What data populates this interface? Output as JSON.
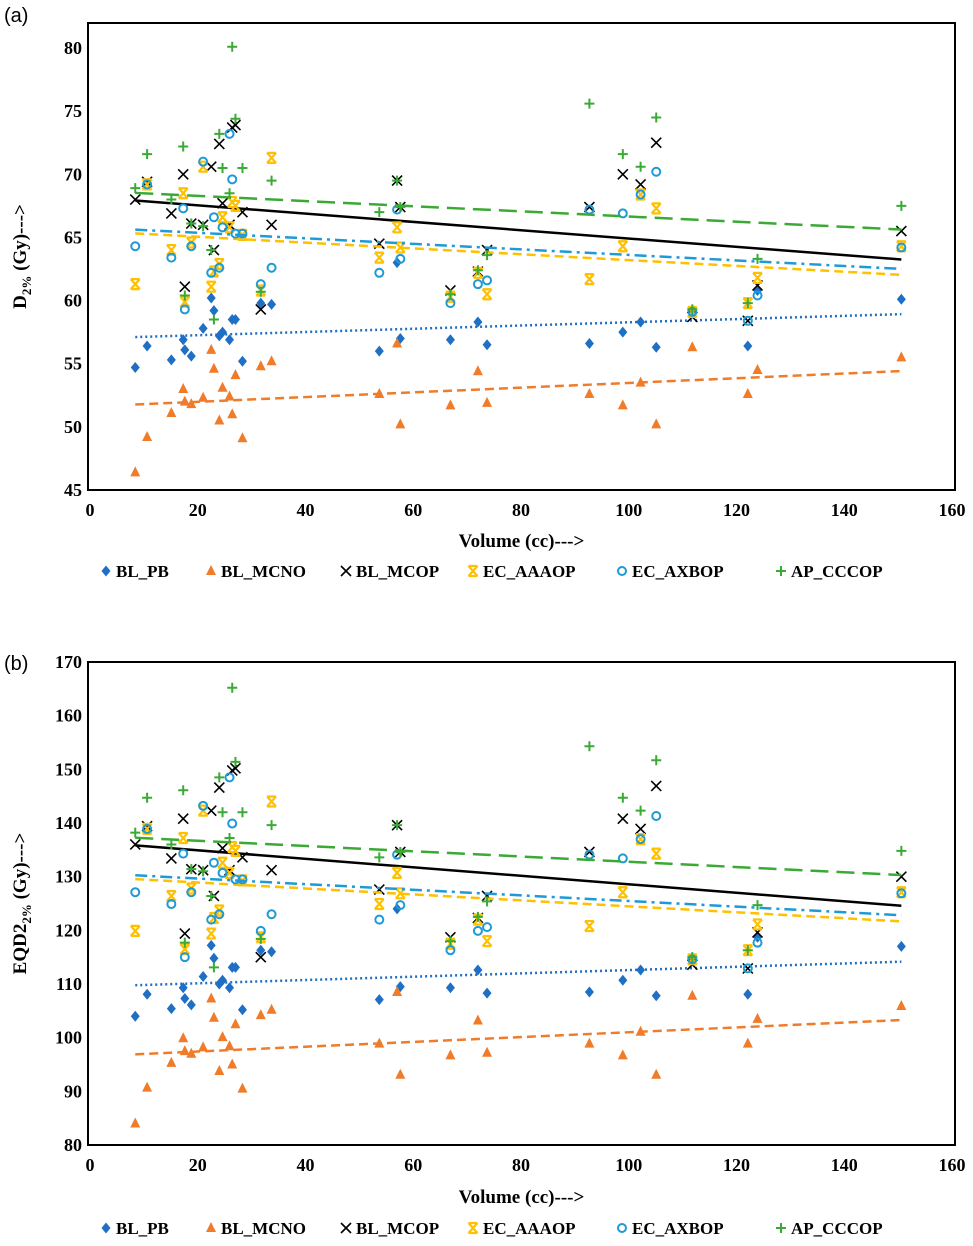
{
  "chart_data": [
    {
      "type": "scatter",
      "panel_label": "(a)",
      "xlabel": "Volume (cc)--->",
      "ylabel": {
        "main": "D",
        "sub": "2%",
        "rest": " (Gy)--->"
      },
      "xlim": [
        0,
        160
      ],
      "ylim": [
        45,
        80
      ],
      "xticks": [
        0,
        20,
        40,
        60,
        80,
        100,
        120,
        140,
        160
      ],
      "yticks": [
        45,
        50,
        55,
        60,
        65,
        70,
        75,
        80
      ],
      "grid": false,
      "legend": "bottom",
      "trendline": "linear",
      "x": [
        8.4,
        10.6,
        15.1,
        17.3,
        17.6,
        18.8,
        21.0,
        22.5,
        23.0,
        24.0,
        24.6,
        25.9,
        26.4,
        27.0,
        28.3,
        31.7,
        33.7,
        53.7,
        57.0,
        57.6,
        66.9,
        72.0,
        73.7,
        92.7,
        98.9,
        102.2,
        105.1,
        111.8,
        122.1,
        123.9,
        150.6
      ],
      "series": [
        {
          "name": "BL_PB",
          "marker": "diamond",
          "color": "#1f6fc5",
          "line": "dotted",
          "values": [
            54.7,
            56.4,
            55.3,
            56.9,
            56.1,
            55.6,
            57.8,
            60.2,
            59.2,
            57.2,
            57.5,
            56.9,
            58.5,
            58.5,
            55.2,
            59.8,
            59.7,
            56.0,
            63.0,
            57.0,
            56.9,
            58.3,
            56.5,
            56.6,
            57.5,
            58.3,
            56.3,
            59.1,
            56.4,
            60.8,
            60.1
          ]
        },
        {
          "name": "BL_MCNO",
          "marker": "triangle",
          "color": "#f07c2a",
          "line": "dashed",
          "values": [
            46.4,
            49.2,
            51.1,
            53.0,
            52.0,
            51.8,
            52.3,
            56.1,
            54.6,
            50.5,
            53.1,
            52.4,
            51.0,
            54.1,
            49.1,
            54.8,
            55.2,
            52.6,
            56.6,
            50.2,
            51.7,
            54.4,
            51.9,
            52.6,
            51.7,
            53.5,
            50.2,
            56.3,
            52.6,
            54.5,
            55.5
          ]
        },
        {
          "name": "BL_MCOP",
          "marker": "x",
          "color": "#000000",
          "line": "solid",
          "values": [
            68.0,
            69.4,
            66.9,
            70.0,
            61.1,
            66.1,
            66.0,
            70.6,
            64.0,
            72.4,
            67.7,
            66.0,
            73.7,
            73.9,
            67.0,
            59.3,
            66.0,
            64.5,
            69.5,
            67.4,
            60.8,
            62.3,
            64.0,
            67.4,
            70.0,
            69.2,
            72.5,
            58.7,
            58.4,
            61.2,
            65.5
          ]
        },
        {
          "name": "EC_AAAOP",
          "marker": "barred-x",
          "color": "#ffc000",
          "line": "dashed",
          "values": [
            61.3,
            69.2,
            64.0,
            68.5,
            59.9,
            64.6,
            70.6,
            61.1,
            62.3,
            62.9,
            66.6,
            65.8,
            67.8,
            67.5,
            65.2,
            60.8,
            71.3,
            63.4,
            65.8,
            64.2,
            60.3,
            62.2,
            60.5,
            61.7,
            64.3,
            68.4,
            67.3,
            59.1,
            59.8,
            61.8,
            64.3
          ]
        },
        {
          "name": "EC_AXBOP",
          "marker": "circle",
          "color": "#1e9ad6",
          "line": "dashdot",
          "values": [
            64.3,
            69.2,
            63.4,
            67.3,
            59.3,
            64.3,
            71.0,
            62.2,
            66.6,
            62.6,
            65.8,
            73.2,
            69.6,
            65.3,
            65.3,
            61.3,
            62.6,
            62.2,
            67.2,
            63.3,
            59.8,
            61.3,
            61.6,
            67.2,
            66.9,
            68.4,
            70.2,
            59.1,
            58.4,
            60.4,
            64.2
          ]
        },
        {
          "name": "AP_CCCOP",
          "marker": "plus",
          "color": "#3aaa35",
          "line": "longdash",
          "values": [
            68.9,
            71.6,
            68.0,
            72.2,
            60.4,
            66.1,
            65.9,
            64.0,
            58.5,
            73.2,
            70.5,
            68.5,
            80.1,
            74.4,
            70.5,
            60.7,
            69.5,
            67.0,
            69.5,
            67.4,
            60.5,
            62.4,
            63.6,
            75.6,
            71.6,
            70.6,
            74.5,
            59.3,
            59.8,
            63.3,
            67.5
          ]
        }
      ]
    },
    {
      "type": "scatter",
      "panel_label": "(b)",
      "xlabel": "Volume (cc)--->",
      "ylabel": {
        "main": "EQD2",
        "sub": "2%",
        "rest": " (Gy)--->"
      },
      "xlim": [
        0,
        160
      ],
      "ylim": [
        80,
        170
      ],
      "xticks": [
        0,
        20,
        40,
        60,
        80,
        100,
        120,
        140,
        160
      ],
      "yticks": [
        80,
        90,
        100,
        110,
        120,
        130,
        140,
        150,
        160,
        170
      ],
      "grid": false,
      "legend": "bottom",
      "trendline": "linear",
      "x": [
        8.4,
        10.6,
        15.1,
        17.3,
        17.6,
        18.8,
        21.0,
        22.5,
        23.0,
        24.0,
        24.6,
        25.9,
        26.4,
        27.0,
        28.3,
        31.7,
        33.7,
        53.7,
        57.0,
        57.6,
        66.9,
        72.0,
        73.7,
        92.7,
        98.9,
        102.2,
        105.1,
        111.8,
        122.1,
        123.9,
        150.6
      ],
      "series": [
        {
          "name": "BL_PB",
          "marker": "diamond",
          "color": "#1f6fc5",
          "line": "dotted",
          "values": [
            104.0,
            108.1,
            105.4,
            109.3,
            107.3,
            106.1,
            111.4,
            117.2,
            114.8,
            110.0,
            110.7,
            109.3,
            113.1,
            113.1,
            105.2,
            116.3,
            116.0,
            107.1,
            124.0,
            109.5,
            109.3,
            112.6,
            108.3,
            108.5,
            110.7,
            112.6,
            107.8,
            114.6,
            108.1,
            118.7,
            117.0
          ]
        },
        {
          "name": "BL_MCNO",
          "marker": "triangle",
          "color": "#f07c2a",
          "line": "dashed",
          "values": [
            84.0,
            90.7,
            95.3,
            99.9,
            97.5,
            97.0,
            98.2,
            107.3,
            103.7,
            93.8,
            100.1,
            98.4,
            95.0,
            102.5,
            90.5,
            104.2,
            105.2,
            98.9,
            108.5,
            93.1,
            96.7,
            103.2,
            97.2,
            98.9,
            96.7,
            101.1,
            93.1,
            107.8,
            98.9,
            103.5,
            105.9
          ]
        },
        {
          "name": "BL_MCOP",
          "marker": "x",
          "color": "#000000",
          "line": "solid",
          "values": [
            136.0,
            139.4,
            133.4,
            140.8,
            119.4,
            131.4,
            131.2,
            142.3,
            126.4,
            146.6,
            135.3,
            131.2,
            149.8,
            150.2,
            133.6,
            115.0,
            131.2,
            127.6,
            139.6,
            134.6,
            118.7,
            122.3,
            126.4,
            134.6,
            140.8,
            138.9,
            146.9,
            113.6,
            112.9,
            119.6,
            130.0
          ]
        },
        {
          "name": "EC_AAAOP",
          "marker": "barred-x",
          "color": "#ffc000",
          "line": "dashed",
          "values": [
            119.9,
            138.9,
            126.4,
            137.2,
            116.5,
            127.8,
            142.3,
            119.4,
            122.3,
            123.7,
            132.6,
            130.7,
            135.5,
            134.8,
            129.3,
            118.7,
            144.0,
            124.9,
            130.7,
            126.9,
            117.5,
            122.0,
            118.0,
            120.8,
            127.1,
            137.0,
            134.3,
            114.6,
            116.3,
            121.1,
            127.1
          ]
        },
        {
          "name": "EC_AXBOP",
          "marker": "circle",
          "color": "#1e9ad6",
          "line": "dashdot",
          "values": [
            127.1,
            138.9,
            124.9,
            134.3,
            115.0,
            127.1,
            143.2,
            122.0,
            132.6,
            123.0,
            130.7,
            148.5,
            139.9,
            129.5,
            129.5,
            119.9,
            123.0,
            122.0,
            134.1,
            124.7,
            116.3,
            119.9,
            120.6,
            134.1,
            133.4,
            137.0,
            141.3,
            114.6,
            112.9,
            117.7,
            126.9
          ]
        },
        {
          "name": "AP_CCCOP",
          "marker": "plus",
          "color": "#3aaa35",
          "line": "longdash",
          "values": [
            138.2,
            144.7,
            136.0,
            146.1,
            117.7,
            131.4,
            131.0,
            126.4,
            113.1,
            148.5,
            142.0,
            137.2,
            165.2,
            151.4,
            142.0,
            118.4,
            139.6,
            133.6,
            139.6,
            134.6,
            118.0,
            122.5,
            125.4,
            154.3,
            144.7,
            142.3,
            151.7,
            115.0,
            116.3,
            124.7,
            134.8
          ]
        }
      ]
    }
  ]
}
